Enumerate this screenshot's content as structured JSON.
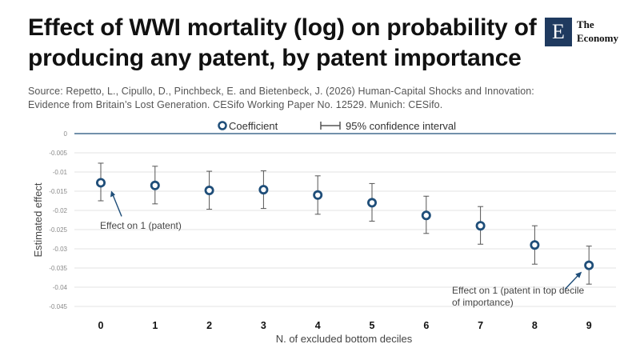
{
  "header": {
    "title_lines": [
      "Effect of WWI mortality (log) on probability of",
      "producing any patent, by patent importance"
    ],
    "source_lines": [
      "Source: Repetto, L., Cipullo, D., Pinchbeck, E. and Bietenbeck, J. (2026) Human-Capital Shocks and Innovation:",
      "Evidence from Britain’s Lost Generation. CESifo Working Paper No. 12529. Munich: CESifo."
    ],
    "logo": {
      "mark": "E",
      "line1": "The",
      "line2": "Economy"
    }
  },
  "legend": {
    "coefficient_label": "Coefficient",
    "ci_label": "95% confidence interval"
  },
  "chart_data": {
    "type": "scatter",
    "xlabel": "N. of excluded bottom deciles",
    "ylabel": "Estimated effect",
    "categories": [
      "0",
      "1",
      "2",
      "3",
      "4",
      "5",
      "6",
      "7",
      "8",
      "9"
    ],
    "y_ticks": [
      "0",
      "-0.005",
      "-0.01",
      "-0.015",
      "-0.02",
      "-0.025",
      "-0.03",
      "-0.035",
      "-0.04",
      "-0.045"
    ],
    "ylim": [
      -0.045,
      0
    ],
    "grid": true,
    "legend_position": "top",
    "series": [
      {
        "name": "Coefficient",
        "values": [
          -0.0128,
          -0.0135,
          -0.0148,
          -0.0146,
          -0.016,
          -0.018,
          -0.0213,
          -0.024,
          -0.029,
          -0.0343
        ],
        "ci_low": [
          -0.0175,
          -0.0183,
          -0.0197,
          -0.0195,
          -0.021,
          -0.0228,
          -0.026,
          -0.0288,
          -0.034,
          -0.0392
        ],
        "ci_high": [
          -0.0077,
          -0.0085,
          -0.0098,
          -0.0097,
          -0.011,
          -0.013,
          -0.0163,
          -0.019,
          -0.024,
          -0.0293
        ]
      }
    ],
    "annotations": [
      {
        "point_index": 0,
        "text_lines": [
          "Effect on 1 (patent)"
        ]
      },
      {
        "point_index": 9,
        "text_lines": [
          "Effect on 1 (patent in top decile",
          "of importance)"
        ]
      }
    ],
    "colors": {
      "marker": "#1f4e79",
      "ci": "#555555",
      "grid": "#e3e3e3",
      "zero_line": "#1f4e79"
    }
  }
}
